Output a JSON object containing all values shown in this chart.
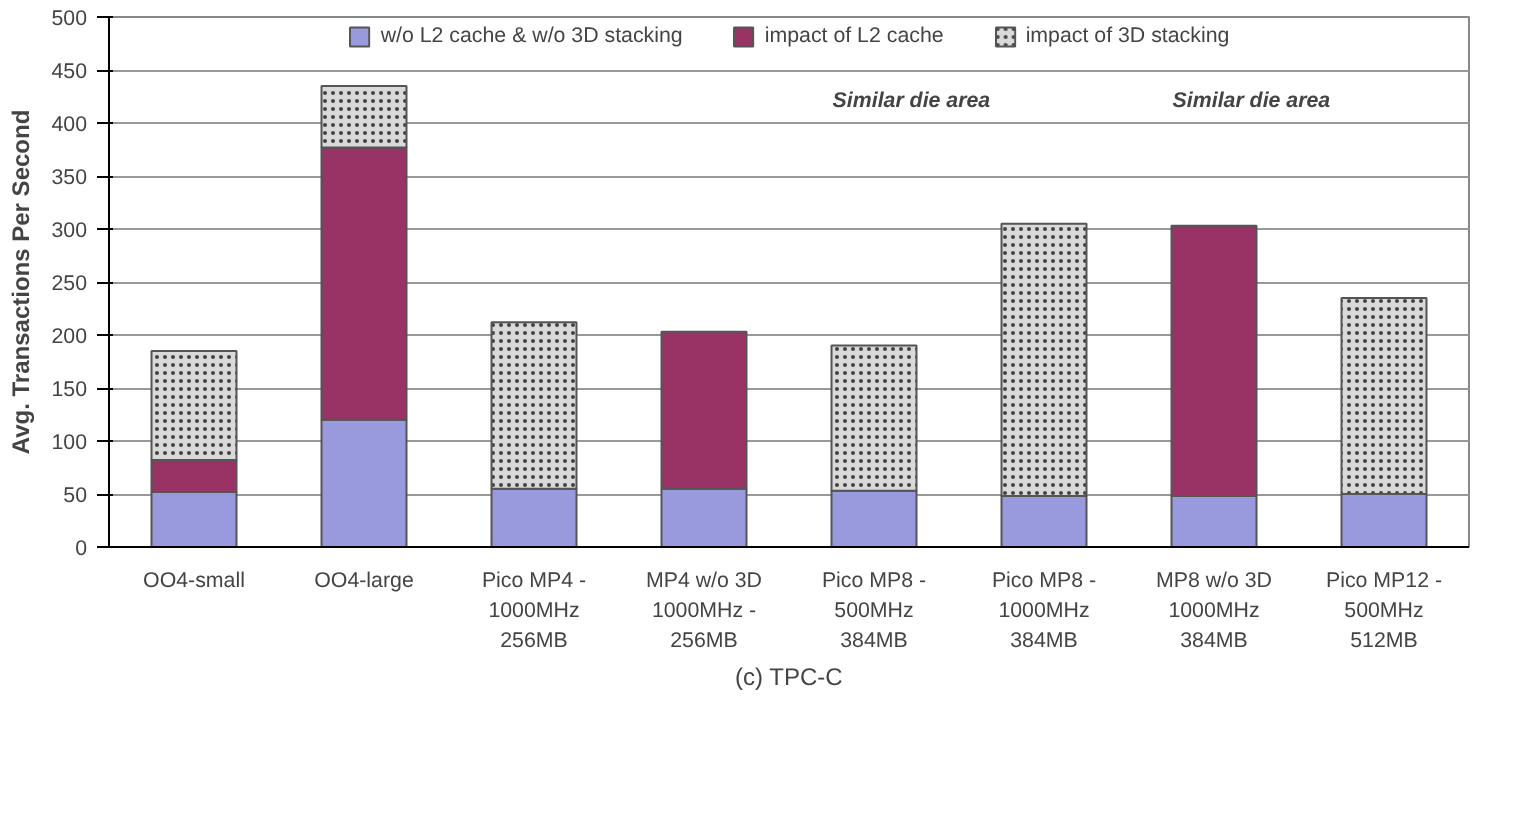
{
  "chart_data": {
    "type": "bar",
    "stacked": true,
    "title": "(c) TPC-C",
    "ylabel": "Avg. Transactions Per Second",
    "categories": [
      "OO4-small",
      "OO4-large",
      "Pico MP4 -\n1000MHz\n256MB",
      "MP4 w/o 3D\n1000MHz -\n256MB",
      "Pico MP8 -\n500MHz\n384MB",
      "Pico MP8 -\n1000MHz\n384MB",
      "MP8 w/o 3D\n1000MHz\n384MB",
      "Pico MP12 -\n500MHz\n512MB"
    ],
    "series": [
      {
        "name": "w/o L2 cache & w/o 3D stacking",
        "color": "#9999dd",
        "values": [
          52,
          120,
          55,
          55,
          53,
          48,
          48,
          50
        ]
      },
      {
        "name": "impact of L2 cache",
        "color": "#993366",
        "values": [
          30,
          257,
          null,
          148,
          null,
          null,
          255,
          null
        ]
      },
      {
        "name": "impact of 3D stacking",
        "color": "#d9d9d9",
        "values": [
          103,
          58,
          157,
          null,
          137,
          257,
          null,
          185
        ]
      }
    ],
    "ylim": [
      0,
      500
    ],
    "yticks": [
      0,
      50,
      100,
      150,
      200,
      250,
      300,
      350,
      400,
      450,
      500
    ],
    "grid": "y",
    "legend": "top",
    "annotations": [
      "Similar die area",
      "Similar die area"
    ]
  }
}
